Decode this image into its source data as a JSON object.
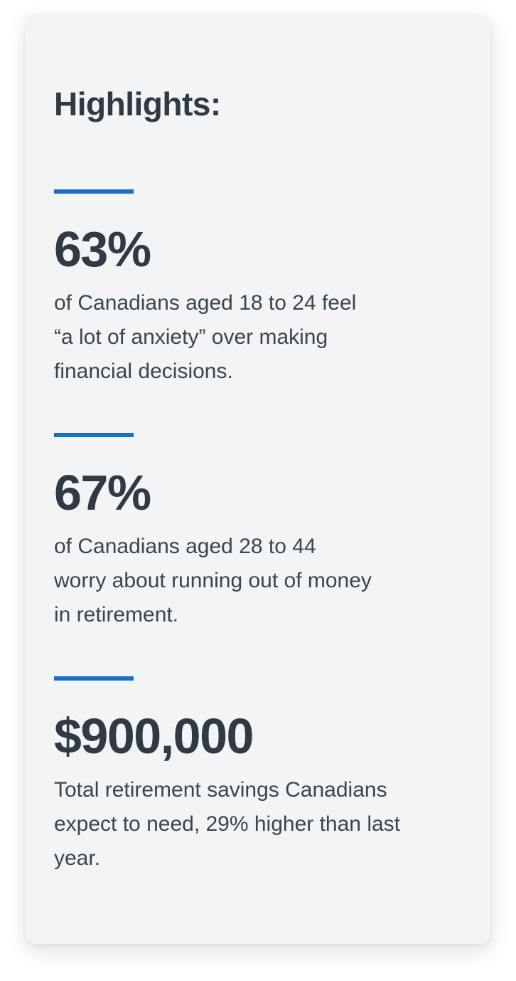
{
  "card": {
    "heading": "Highlights:",
    "accent_color": "#1a6fc4",
    "stats": [
      {
        "value": "63%",
        "description": "of Canadians aged 18 to 24 feel\n“a lot of anxiety” over making\nfinancial decisions."
      },
      {
        "value": "67%",
        "description": "of Canadians aged 28 to 44\nworry about running out of money\nin retirement."
      },
      {
        "value": "$900,000",
        "description": "Total retirement savings Canadians\nexpect to need, 29% higher than last\nyear."
      }
    ]
  }
}
